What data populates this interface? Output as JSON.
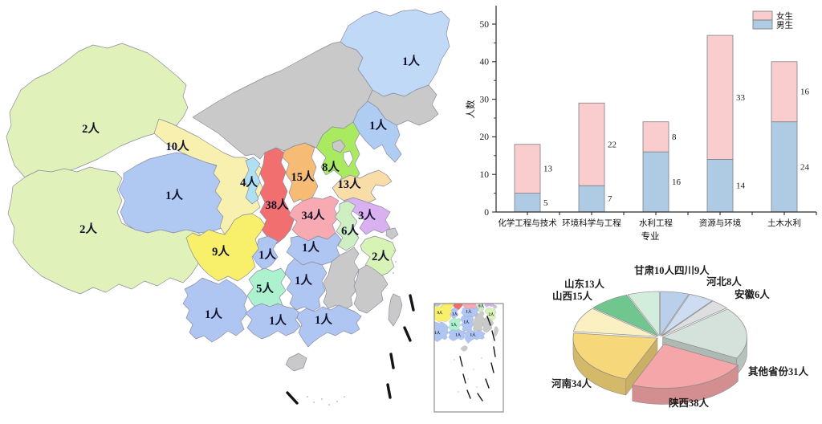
{
  "figure": {
    "background": "#ffffff",
    "description": "生源分布统计：中国地图各省人数标注、各专业男女生堆积柱状图、各省生源3D饼图"
  },
  "chart_data": [
    {
      "type": "bar",
      "subtype": "stacked",
      "title": "",
      "xlabel": "专业",
      "ylabel": "人数",
      "categories": [
        "化学工程与技术",
        "环境科学与工程",
        "水利工程",
        "资源与环境",
        "土木水利"
      ],
      "series": [
        {
          "name": "男生",
          "color": "#AFCBE3",
          "values": [
            5,
            7,
            16,
            14,
            24
          ]
        },
        {
          "name": "女生",
          "color": "#F9CCCE",
          "values": [
            13,
            22,
            8,
            33,
            16
          ]
        }
      ],
      "totals": [
        18,
        29,
        24,
        47,
        40
      ],
      "ylim": [
        0,
        55
      ],
      "yticks": [
        0,
        10,
        20,
        30,
        40,
        50
      ],
      "legend": [
        "女生",
        "男生"
      ],
      "legend_position": "top-right",
      "grid": false
    },
    {
      "type": "pie",
      "subtype": "3d-exploded",
      "start_angle": "top",
      "direction": "clockwise",
      "slices": [
        {
          "label": "四川9人",
          "province": "四川",
          "value": 9,
          "color": "#B9CFEA",
          "exploded": false
        },
        {
          "label": "河北8人",
          "province": "河北",
          "value": 8,
          "color": "#CDDCF0",
          "exploded": false
        },
        {
          "label": "安徽6人",
          "province": "安徽",
          "value": 6,
          "color": "#DDDEE0",
          "exploded": false
        },
        {
          "label": "其他省份31人",
          "province": "其他省份",
          "value": 31,
          "color": "#D5E2DC",
          "exploded": false
        },
        {
          "label": "陕西38人",
          "province": "陕西",
          "value": 38,
          "color": "#F5A6A8",
          "exploded": true
        },
        {
          "label": "河南34人",
          "province": "河南",
          "value": 34,
          "color": "#F6D77A",
          "exploded": false
        },
        {
          "label": "山西15人",
          "province": "山西",
          "value": 15,
          "color": "#FAF0C2",
          "exploded": false
        },
        {
          "label": "山东13人",
          "province": "山东",
          "value": 13,
          "color": "#6FC78F",
          "exploded": false
        },
        {
          "label": "甘肃10人",
          "province": "甘肃",
          "value": 10,
          "color": "#D3EDDC",
          "exploded": false
        }
      ]
    }
  ],
  "map": {
    "no_data_color": "#C9C9C9",
    "border_color": "#8b8ba0",
    "label_color": "#101028",
    "dash_line_color": "#141414",
    "regions": [
      {
        "id": "neimenggu",
        "name": "内蒙古",
        "label": "",
        "color": null
      },
      {
        "id": "heilongjiang",
        "name": "黑龙江",
        "label": "1人",
        "color": "#BFD9F6"
      },
      {
        "id": "jilin",
        "name": "吉林",
        "label": "",
        "color": null
      },
      {
        "id": "liaoning",
        "name": "辽宁",
        "label": "1人",
        "color": "#AFCCF2"
      },
      {
        "id": "xinjiang",
        "name": "新疆",
        "label": "2人",
        "color": "#E0F1B9"
      },
      {
        "id": "xizang",
        "name": "西藏",
        "label": "2人",
        "color": "#E0F1B9"
      },
      {
        "id": "qinghai",
        "name": "青海",
        "label": "1人",
        "color": "#AFC9F2"
      },
      {
        "id": "gansu",
        "name": "甘肃",
        "label": "10人",
        "color": "#F7F0AE"
      },
      {
        "id": "ningxia",
        "name": "宁夏",
        "label": "4人",
        "color": "#AEDFF2"
      },
      {
        "id": "shaanxi",
        "name": "陕西",
        "label": "38人",
        "color": "#F26F6F"
      },
      {
        "id": "shanxi",
        "name": "山西",
        "label": "15人",
        "color": "#F6BB74"
      },
      {
        "id": "hebei",
        "name": "河北",
        "label": "8人",
        "color": "#AAEA60"
      },
      {
        "id": "beijing",
        "name": "北京",
        "label": "",
        "color": "#C9C9C9"
      },
      {
        "id": "tianjin",
        "name": "天津",
        "label": "",
        "color": "#FFFFFF"
      },
      {
        "id": "shandong",
        "name": "山东",
        "label": "13人",
        "color": "#F8DDA8"
      },
      {
        "id": "henan",
        "name": "河南",
        "label": "34人",
        "color": "#F8AAB2"
      },
      {
        "id": "jiangsu",
        "name": "江苏",
        "label": "3人",
        "color": "#D9B0F0"
      },
      {
        "id": "anhui",
        "name": "安徽",
        "label": "6人",
        "color": "#CDEFC2"
      },
      {
        "id": "shanghai",
        "name": "上海",
        "label": "",
        "color": "#C9C9C9"
      },
      {
        "id": "zhejiang",
        "name": "浙江",
        "label": "2人",
        "color": "#D8F3B6"
      },
      {
        "id": "hubei",
        "name": "湖北",
        "label": "1人",
        "color": "#AFC6F2"
      },
      {
        "id": "chongqing",
        "name": "重庆",
        "label": "1人",
        "color": "#AFC6F2"
      },
      {
        "id": "sichuan",
        "name": "四川",
        "label": "9人",
        "color": "#F8F06A"
      },
      {
        "id": "guizhou",
        "name": "贵州",
        "label": "5人",
        "color": "#ACF2CE"
      },
      {
        "id": "yunnan",
        "name": "云南",
        "label": "1人",
        "color": "#AFC6F2"
      },
      {
        "id": "hunan",
        "name": "湖南",
        "label": "1人",
        "color": "#AFC6F2"
      },
      {
        "id": "jiangxi",
        "name": "江西",
        "label": "",
        "color": null
      },
      {
        "id": "fujian",
        "name": "福建",
        "label": "",
        "color": null
      },
      {
        "id": "guangxi",
        "name": "广西",
        "label": "1人",
        "color": "#AFC6F2"
      },
      {
        "id": "guangdong",
        "name": "广东",
        "label": "1人",
        "color": "#AFC6F2"
      },
      {
        "id": "hainan",
        "name": "海南",
        "label": "",
        "color": null
      },
      {
        "id": "taiwan",
        "name": "台湾",
        "label": "",
        "color": null
      }
    ]
  }
}
